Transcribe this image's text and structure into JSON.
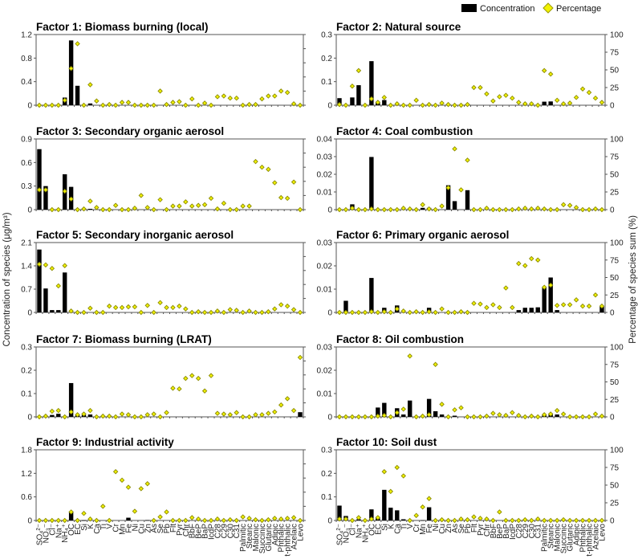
{
  "chart_data": {
    "type": "bar",
    "legend": {
      "position": "top-right",
      "items": [
        {
          "name": "Concentration",
          "mark": "bar",
          "color": "#000000"
        },
        {
          "name": "Percentage",
          "mark": "diamond",
          "color": "#F2F200"
        }
      ]
    },
    "ylabel_left": "Concentration of species (μg/m³)",
    "ylabel_right": "Percentage of species  sum (%)",
    "right_ylim": [
      0,
      100
    ],
    "right_ticks": [
      0,
      25,
      50,
      75,
      100
    ],
    "categories": [
      "SO₄²⁻",
      "NO₃⁻",
      "Cl⁻",
      "Na⁺",
      "NH₄⁺",
      "OC",
      "EC",
      "Si",
      "K",
      "Ca",
      "Ti",
      "V",
      "Cr",
      "Mn",
      "Fe",
      "Ni",
      "Cu",
      "Zn",
      "As",
      "Se",
      "Pb",
      "Flt",
      "Pyr",
      "Chr",
      "BbF",
      "BeP",
      "BaP",
      "IcdP",
      "C28",
      "C29",
      "C30",
      "C31",
      "Palmitic",
      "Stearic",
      "Malonic",
      "Succinic",
      "Glutaric",
      "Adipic",
      "Phthalic",
      "t-phthalic",
      "Azelaic",
      "Levo"
    ],
    "panels": [
      {
        "title": "Factor 1: Biomass burning (local)",
        "ylim": [
          0,
          1.2
        ],
        "yticks": [
          0,
          0.4,
          0.8,
          1.2
        ],
        "concentration": [
          0,
          0,
          0,
          0,
          0.13,
          1.1,
          0.33,
          0,
          0.03,
          0,
          0,
          0,
          0,
          0,
          0,
          0,
          0,
          0,
          0,
          0,
          0,
          0,
          0,
          0,
          0,
          0,
          0,
          0,
          0,
          0,
          0,
          0,
          0,
          0,
          0,
          0,
          0,
          0,
          0,
          0,
          0,
          0
        ],
        "percentage": [
          0,
          0,
          0,
          0,
          7,
          52,
          87,
          0,
          29,
          6,
          0,
          1,
          0,
          4,
          4,
          0,
          0,
          0,
          0,
          20,
          1,
          4,
          5,
          0,
          9,
          0,
          3,
          0,
          12,
          13,
          10,
          10,
          0,
          1,
          1,
          9,
          13,
          13,
          20,
          18,
          2,
          0
        ]
      },
      {
        "title": "Factor 2: Natural source",
        "ylim": [
          0,
          0.3
        ],
        "yticks": [
          0,
          0.1,
          0.2,
          0.3
        ],
        "concentration": [
          0.03,
          0,
          0.033,
          0.085,
          0,
          0.187,
          0.015,
          0.022,
          0,
          0,
          0,
          0,
          0,
          0,
          0,
          0,
          0,
          0,
          0,
          0,
          0,
          0,
          0,
          0,
          0,
          0,
          0,
          0,
          0,
          0,
          0,
          0,
          0.015,
          0.016,
          0,
          0,
          0,
          0,
          0,
          0,
          0,
          0
        ],
        "percentage": [
          1,
          0,
          27,
          49,
          0,
          9,
          4,
          11,
          0,
          2,
          0,
          0,
          7,
          0,
          1,
          0,
          3,
          1,
          0,
          0,
          1,
          25,
          25,
          16,
          6,
          12,
          14,
          10,
          4,
          2,
          2,
          0,
          49,
          44,
          7,
          2,
          3,
          11,
          23,
          18,
          10,
          4
        ]
      },
      {
        "title": "Factor 3: Secondary organic aerosol",
        "ylim": [
          0,
          0.9
        ],
        "yticks": [
          0,
          0.3,
          0.6,
          0.9
        ],
        "concentration": [
          0.77,
          0.3,
          0,
          0,
          0.45,
          0.29,
          0,
          0,
          0.01,
          0,
          0,
          0,
          0,
          0,
          0,
          0,
          0,
          0,
          0,
          0,
          0,
          0,
          0,
          0,
          0,
          0,
          0,
          0,
          0,
          0,
          0,
          0,
          0,
          0,
          0,
          0,
          0,
          0,
          0,
          0,
          0,
          0
        ],
        "percentage": [
          28,
          28,
          0,
          0,
          26,
          15,
          0,
          1,
          12,
          3,
          0,
          0,
          6,
          0,
          0,
          2,
          20,
          3,
          0,
          14,
          0,
          5,
          5,
          11,
          5,
          6,
          7,
          16,
          1,
          9,
          0,
          0,
          5,
          5,
          68,
          60,
          57,
          38,
          17,
          16,
          39,
          0
        ]
      },
      {
        "title": "Factor 4: Coal combustion",
        "ylim": [
          0,
          0.04
        ],
        "yticks": [
          0,
          0.01,
          0.02,
          0.03,
          0.04
        ],
        "concentration": [
          0,
          0,
          0.003,
          0,
          0,
          0.0298,
          0,
          0,
          0,
          0,
          0,
          0,
          0,
          0.001,
          0.001,
          0,
          0,
          0.0138,
          0.0048,
          0,
          0.011,
          0,
          0,
          0,
          0,
          0,
          0,
          0,
          0,
          0,
          0,
          0,
          0,
          0,
          0,
          0,
          0,
          0,
          0,
          0,
          0,
          0
        ],
        "percentage": [
          0,
          0,
          2,
          0,
          0,
          1,
          0,
          0,
          0,
          0,
          2,
          1,
          0,
          7,
          1,
          0,
          5,
          31,
          86,
          28,
          70,
          0,
          0,
          2,
          0,
          0,
          0,
          0,
          1,
          2,
          1,
          2,
          1,
          0,
          0,
          7,
          6,
          3,
          0,
          0,
          1,
          0
        ]
      },
      {
        "title": "Factor 5: Secondary inorganic aerosol",
        "ylim": [
          0,
          2.1
        ],
        "yticks": [
          0,
          0.7,
          1.4,
          2.1
        ],
        "concentration": [
          1.89,
          0.72,
          0.07,
          0.07,
          1.2,
          0,
          0,
          0,
          0,
          0,
          0,
          0,
          0,
          0,
          0,
          0,
          0,
          0,
          0,
          0,
          0,
          0,
          0,
          0,
          0,
          0,
          0,
          0,
          0,
          0,
          0,
          0,
          0,
          0,
          0,
          0,
          0,
          0,
          0,
          0,
          0,
          0
        ],
        "percentage": [
          69,
          68,
          63,
          38,
          67,
          2,
          0,
          0,
          6,
          0,
          0,
          9,
          7,
          7,
          8,
          8,
          0,
          10,
          0,
          14,
          7,
          7,
          9,
          5,
          0,
          1,
          0,
          0,
          2,
          0,
          4,
          3,
          0,
          2,
          0,
          0,
          1,
          5,
          11,
          9,
          4,
          0
        ]
      },
      {
        "title": "Factor 6: Primary organic aerosol",
        "ylim": [
          0,
          0.03
        ],
        "yticks": [
          0,
          0.01,
          0.02,
          0.03
        ],
        "concentration": [
          0,
          0.005,
          0,
          0,
          0,
          0.0148,
          0,
          0.002,
          0,
          0.003,
          0,
          0,
          0,
          0,
          0.002,
          0,
          0,
          0,
          0,
          0,
          0,
          0,
          0,
          0,
          0,
          0,
          0,
          0,
          0.001,
          0.002,
          0.002,
          0.0022,
          0.011,
          0.015,
          0.001,
          0,
          0,
          0,
          0,
          0,
          0,
          0.0025
        ],
        "percentage": [
          0,
          0,
          0,
          0,
          0,
          1,
          0,
          1,
          0,
          5,
          2,
          0,
          1,
          0,
          1,
          0,
          5,
          0,
          0,
          1,
          0,
          13,
          12,
          7,
          11,
          7,
          35,
          7,
          70,
          67,
          77,
          75,
          36,
          39,
          10,
          11,
          11,
          18,
          9,
          9,
          25,
          9
        ]
      },
      {
        "title": "Factor 7: Biomass burning (LRAT)",
        "ylim": [
          0,
          0.3
        ],
        "yticks": [
          0,
          0.1,
          0.2,
          0.3
        ],
        "concentration": [
          0,
          0,
          0.008,
          0.013,
          0,
          0.145,
          0.008,
          0.008,
          0.01,
          0,
          0,
          0,
          0,
          0,
          0,
          0,
          0,
          0,
          0,
          0,
          0,
          0,
          0,
          0,
          0,
          0,
          0,
          0,
          0,
          0,
          0,
          0,
          0,
          0,
          0,
          0,
          0,
          0,
          0,
          0,
          0,
          0.02
        ],
        "percentage": [
          0,
          1,
          8,
          9,
          0,
          7,
          3,
          4,
          9,
          0,
          1,
          1,
          0,
          4,
          3,
          0,
          0,
          3,
          4,
          0,
          6,
          41,
          40,
          55,
          59,
          55,
          37,
          59,
          5,
          4,
          3,
          6,
          0,
          0,
          3,
          3,
          5,
          7,
          17,
          26,
          9,
          85
        ]
      },
      {
        "title": "Factor 8: Oil combustion",
        "ylim": [
          0,
          0.03
        ],
        "yticks": [
          0,
          0.01,
          0.02,
          0.03
        ],
        "concentration": [
          0,
          0,
          0,
          0,
          0,
          0,
          0.004,
          0.006,
          0,
          0.0037,
          0.001,
          0.007,
          0,
          0,
          0.0077,
          0.0024,
          0.001,
          0,
          0.0005,
          0,
          0,
          0,
          0,
          0,
          0,
          0,
          0,
          0,
          0,
          0,
          0,
          0,
          0.001,
          0.0015,
          0.001,
          0,
          0,
          0,
          0,
          0,
          0,
          0
        ],
        "percentage": [
          0,
          0,
          0,
          0,
          0,
          0,
          1,
          2,
          0,
          6,
          11,
          87,
          0,
          1,
          3,
          75,
          18,
          0,
          10,
          13,
          0,
          0,
          0,
          1,
          5,
          3,
          2,
          6,
          2,
          0,
          1,
          0,
          3,
          4,
          9,
          4,
          0,
          0,
          0,
          0,
          4,
          1
        ]
      },
      {
        "title": "Factor 9: Industrial activity",
        "ylim": [
          0,
          1.8
        ],
        "yticks": [
          0,
          0.6,
          1.2,
          1.8
        ],
        "concentration": [
          0,
          0,
          0,
          0,
          0,
          0.23,
          0,
          0.005,
          0,
          0,
          0,
          0,
          0,
          0,
          0.07,
          0,
          0,
          0.01,
          0,
          0,
          0,
          0,
          0,
          0,
          0,
          0,
          0,
          0,
          0,
          0,
          0,
          0,
          0,
          0,
          0,
          0,
          0,
          0,
          0,
          0,
          0,
          0
        ],
        "percentage": [
          0,
          0,
          0,
          0,
          0,
          12,
          0,
          10,
          2,
          0,
          20,
          0,
          69,
          57,
          47,
          13,
          45,
          52,
          0,
          5,
          12,
          0,
          0,
          0,
          4,
          2,
          0,
          0,
          2,
          0,
          1,
          0,
          5,
          3,
          1,
          0,
          1,
          3,
          2,
          3,
          4,
          0
        ]
      },
      {
        "title": "Factor 10: Soil dust",
        "ylim": [
          0,
          0.3
        ],
        "yticks": [
          0,
          0.1,
          0.2,
          0.3
        ],
        "concentration": [
          0.063,
          0.019,
          0,
          0.005,
          0,
          0.047,
          0.015,
          0.13,
          0.054,
          0.043,
          0.005,
          0,
          0,
          0.001,
          0.056,
          0,
          0,
          0,
          0,
          0,
          0,
          0,
          0,
          0,
          0,
          0,
          0,
          0,
          0,
          0,
          0,
          0,
          0,
          0,
          0,
          0,
          0,
          0,
          0,
          0,
          0,
          0
        ],
        "percentage": [
          2,
          2,
          0,
          4,
          0,
          2,
          4,
          69,
          41,
          75,
          63,
          0,
          7,
          19,
          31,
          0,
          1,
          0,
          0,
          2,
          1,
          5,
          3,
          2,
          0,
          12,
          0,
          0,
          0,
          1,
          0,
          2,
          0,
          0,
          0,
          1,
          0,
          0,
          0,
          0,
          0,
          0
        ]
      }
    ]
  }
}
